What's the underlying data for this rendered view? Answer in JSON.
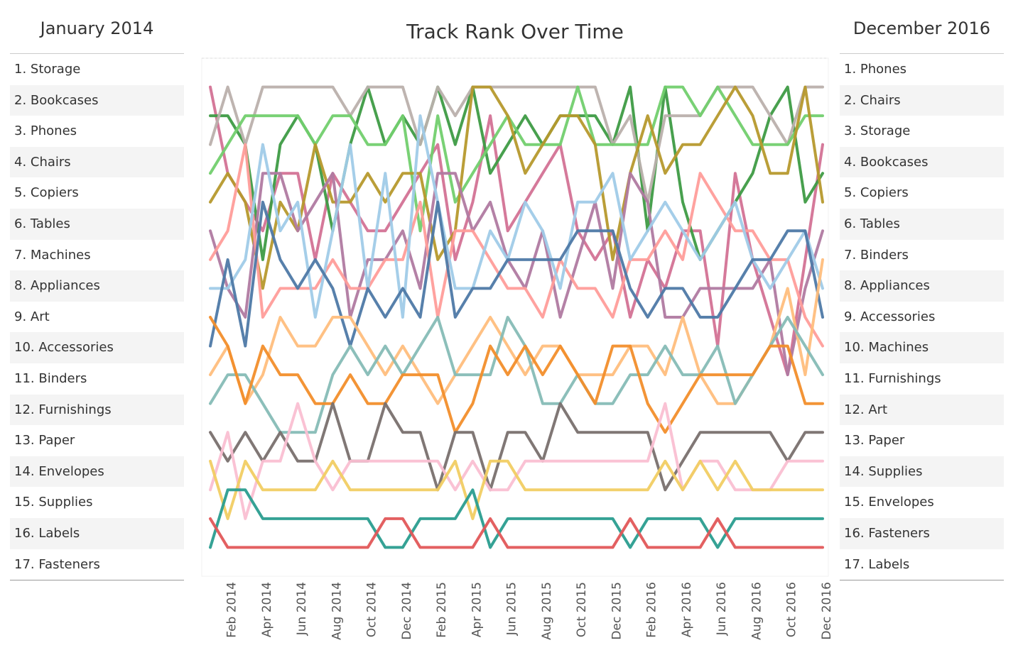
{
  "left_panel": {
    "title": "January 2014",
    "items": [
      "1. Storage",
      "2. Bookcases",
      "3. Phones",
      "4. Chairs",
      "5. Copiers",
      "6. Tables",
      "7. Machines",
      "8. Appliances",
      "9. Art",
      "10. Accessories",
      "11. Binders",
      "12. Furnishings",
      "13. Paper",
      "14. Envelopes",
      "15. Supplies",
      "16. Labels",
      "17. Fasteners"
    ]
  },
  "right_panel": {
    "title": "December 2016",
    "items": [
      "1. Phones",
      "2. Chairs",
      "3. Storage",
      "4. Bookcases",
      "5. Copiers",
      "6. Tables",
      "7. Binders",
      "8. Appliances",
      "9. Accessories",
      "10. Machines",
      "11. Furnishings",
      "12. Art",
      "13. Paper",
      "14. Supplies",
      "15. Envelopes",
      "16. Fasteners",
      "17. Labels"
    ]
  },
  "chart_data": {
    "type": "line",
    "title": "Track Rank Over Time",
    "categories": [
      null,
      "Feb 2014",
      null,
      "Apr 2014",
      null,
      "Jun 2014",
      null,
      "Aug 2014",
      null,
      "Oct 2014",
      null,
      "Dec 2014",
      null,
      "Feb 2015",
      null,
      "Apr 2015",
      null,
      "Jun 2015",
      null,
      "Aug 2015",
      null,
      "Oct 2015",
      null,
      "Dec 2015",
      null,
      "Feb 2016",
      null,
      "Apr 2016",
      null,
      "Jun 2016",
      null,
      "Aug 2016",
      null,
      "Oct 2016",
      null,
      "Dec 2016"
    ],
    "ylim": [
      18,
      0
    ],
    "series": [
      {
        "name": "Storage",
        "color": "#d37295",
        "values": [
          1,
          4,
          5,
          6,
          4,
          4,
          7,
          4,
          5,
          6,
          6,
          5,
          4,
          3,
          7,
          5,
          2,
          6,
          5,
          4,
          3,
          6,
          7,
          6,
          9,
          7,
          8,
          6,
          6,
          10,
          4,
          7,
          9,
          11,
          7,
          3
        ]
      },
      {
        "name": "Bookcases",
        "color": "#3e9b45",
        "values": [
          2,
          2,
          3,
          7,
          3,
          2,
          3,
          6,
          3,
          1,
          3,
          2,
          3,
          1,
          3,
          1,
          4,
          3,
          2,
          3,
          2,
          2,
          2,
          3,
          1,
          6,
          1,
          5,
          7,
          6,
          5,
          4,
          2,
          1,
          5,
          4
        ]
      },
      {
        "name": "Phones",
        "color": "#bab0ac",
        "values": [
          3,
          1,
          3,
          1,
          1,
          1,
          1,
          1,
          2,
          1,
          1,
          1,
          3,
          1,
          2,
          1,
          1,
          1,
          1,
          1,
          1,
          1,
          1,
          3,
          2,
          5,
          2,
          2,
          2,
          1,
          1,
          1,
          2,
          3,
          1,
          1
        ]
      },
      {
        "name": "Chairs",
        "color": "#72cf6e",
        "values": [
          4,
          3,
          2,
          2,
          2,
          2,
          3,
          2,
          2,
          3,
          3,
          2,
          6,
          2,
          5,
          4,
          3,
          2,
          3,
          3,
          3,
          1,
          3,
          3,
          3,
          3,
          1,
          1,
          2,
          1,
          2,
          3,
          3,
          3,
          2,
          2
        ]
      },
      {
        "name": "Copiers",
        "color": "#b6992d",
        "values": [
          5,
          4,
          5,
          8,
          5,
          6,
          3,
          5,
          5,
          4,
          5,
          4,
          4,
          7,
          6,
          1,
          1,
          2,
          4,
          3,
          2,
          2,
          3,
          7,
          4,
          2,
          4,
          3,
          3,
          2,
          1,
          2,
          4,
          4,
          1,
          5
        ]
      },
      {
        "name": "Tables",
        "color": "#b07aa1",
        "values": [
          6,
          8,
          9,
          4,
          4,
          6,
          5,
          4,
          9,
          7,
          7,
          6,
          8,
          4,
          4,
          6,
          5,
          7,
          8,
          6,
          9,
          7,
          5,
          8,
          4,
          5,
          9,
          9,
          8,
          8,
          8,
          8,
          7,
          11,
          8,
          6
        ]
      },
      {
        "name": "Machines",
        "color": "#ff9d9a",
        "values": [
          7,
          6,
          3,
          9,
          8,
          8,
          8,
          7,
          8,
          8,
          7,
          7,
          5,
          9,
          6,
          6,
          7,
          8,
          8,
          9,
          7,
          8,
          8,
          9,
          7,
          7,
          6,
          7,
          4,
          5,
          6,
          6,
          7,
          7,
          9,
          10
        ]
      },
      {
        "name": "Appliances",
        "color": "#a0cbe8",
        "values": [
          8,
          8,
          7,
          3,
          6,
          5,
          9,
          6,
          3,
          8,
          4,
          9,
          2,
          5,
          8,
          8,
          6,
          7,
          5,
          6,
          8,
          5,
          5,
          4,
          7,
          6,
          5,
          6,
          7,
          6,
          5,
          7,
          8,
          7,
          6,
          8
        ]
      },
      {
        "name": "Accessories",
        "color": "#4e79a7",
        "values": [
          10,
          7,
          10,
          5,
          7,
          8,
          7,
          8,
          10,
          8,
          9,
          8,
          9,
          5,
          9,
          8,
          8,
          7,
          7,
          7,
          7,
          6,
          6,
          6,
          8,
          9,
          8,
          8,
          9,
          9,
          8,
          7,
          7,
          6,
          6,
          9
        ]
      },
      {
        "name": "Binders",
        "color": "#ffbe7d",
        "values": [
          11,
          10,
          12,
          11,
          9,
          10,
          10,
          9,
          9,
          10,
          11,
          10,
          11,
          12,
          11,
          10,
          9,
          10,
          11,
          10,
          10,
          11,
          11,
          11,
          10,
          10,
          11,
          9,
          11,
          12,
          12,
          11,
          10,
          8,
          11,
          7
        ]
      },
      {
        "name": "Furnishings",
        "color": "#86bcb6",
        "values": [
          12,
          11,
          11,
          12,
          13,
          13,
          13,
          11,
          10,
          11,
          10,
          11,
          10,
          9,
          11,
          11,
          11,
          9,
          10,
          12,
          12,
          11,
          12,
          12,
          11,
          11,
          10,
          11,
          11,
          10,
          12,
          11,
          10,
          9,
          10,
          11
        ]
      },
      {
        "name": "Art",
        "color": "#f28e2b",
        "values": [
          9,
          10,
          12,
          10,
          11,
          11,
          12,
          12,
          11,
          12,
          12,
          11,
          11,
          11,
          13,
          12,
          10,
          11,
          10,
          11,
          10,
          11,
          12,
          10,
          10,
          12,
          13,
          12,
          11,
          11,
          11,
          11,
          10,
          10,
          12,
          12
        ]
      },
      {
        "name": "Paper",
        "color": "#79706e",
        "values": [
          13,
          14,
          13,
          14,
          13,
          14,
          14,
          12,
          14,
          14,
          12,
          13,
          13,
          15,
          13,
          13,
          15,
          13,
          13,
          14,
          12,
          13,
          13,
          13,
          13,
          13,
          15,
          14,
          13,
          13,
          13,
          13,
          13,
          14,
          13,
          13
        ]
      },
      {
        "name": "Supplies",
        "color": "#fabfd2",
        "values": [
          15,
          13,
          16,
          14,
          14,
          12,
          14,
          15,
          14,
          14,
          14,
          14,
          14,
          14,
          15,
          14,
          15,
          15,
          14,
          14,
          14,
          14,
          14,
          14,
          14,
          14,
          12,
          15,
          14,
          14,
          15,
          15,
          15,
          14,
          14,
          14
        ]
      },
      {
        "name": "Envelopes",
        "color": "#f1ce63",
        "values": [
          14,
          16,
          14,
          15,
          15,
          15,
          15,
          14,
          15,
          15,
          15,
          15,
          15,
          15,
          14,
          16,
          14,
          14,
          15,
          15,
          15,
          15,
          15,
          15,
          15,
          15,
          14,
          15,
          14,
          15,
          14,
          15,
          15,
          15,
          15,
          15
        ]
      },
      {
        "name": "Fasteners",
        "color": "#2a9d8f",
        "values": [
          17,
          15,
          15,
          16,
          16,
          16,
          16,
          16,
          16,
          16,
          17,
          17,
          16,
          16,
          16,
          15,
          17,
          16,
          16,
          16,
          16,
          16,
          16,
          16,
          17,
          16,
          16,
          16,
          16,
          17,
          16,
          16,
          16,
          16,
          16,
          16
        ]
      },
      {
        "name": "Labels",
        "color": "#e15759",
        "values": [
          16,
          17,
          17,
          17,
          17,
          17,
          17,
          17,
          17,
          17,
          16,
          16,
          17,
          17,
          17,
          17,
          16,
          17,
          17,
          17,
          17,
          17,
          17,
          17,
          16,
          17,
          17,
          17,
          17,
          16,
          17,
          17,
          17,
          17,
          17,
          17
        ]
      }
    ]
  }
}
